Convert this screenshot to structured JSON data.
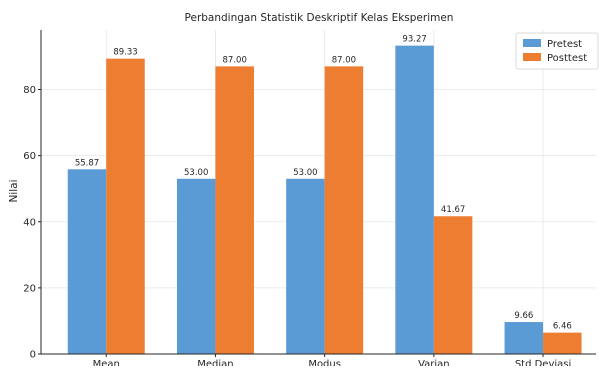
{
  "chart_data": {
    "type": "bar",
    "title": "Perbandingan Statistik Deskriptif Kelas Eksperimen",
    "xlabel": "",
    "ylabel": "Nilai",
    "categories": [
      "Mean",
      "Median",
      "Modus",
      "Varian",
      "Std Deviasi"
    ],
    "series": [
      {
        "name": "Pretest",
        "color": "#5b9bd5",
        "values": [
          55.87,
          53.0,
          53.0,
          93.27,
          9.66
        ],
        "labels": [
          "55.87",
          "53.00",
          "53.00",
          "93.27",
          "9.66"
        ]
      },
      {
        "name": "Posttest",
        "color": "#ed7d31",
        "values": [
          89.33,
          87.0,
          87.0,
          41.67,
          6.46
        ],
        "labels": [
          "89.33",
          "87.00",
          "87.00",
          "41.67",
          "6.46"
        ]
      }
    ],
    "ylim": [
      0,
      98
    ],
    "yticks": [
      0,
      20,
      40,
      60,
      80
    ],
    "grid": true,
    "legend_position": "top-right"
  }
}
